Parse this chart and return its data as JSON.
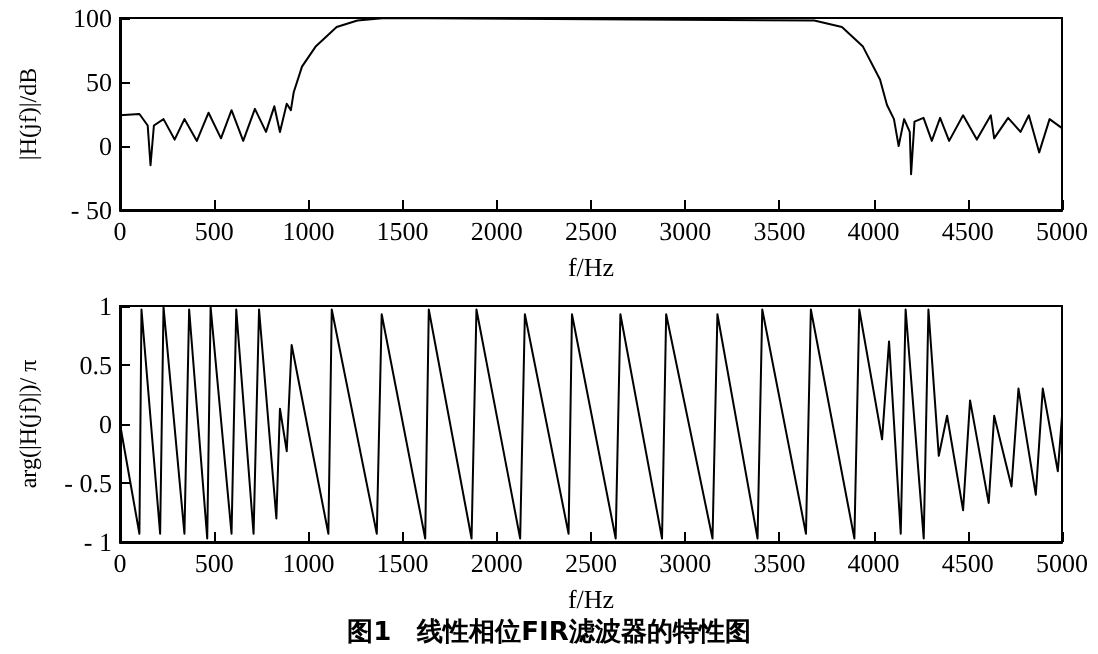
{
  "chart_data": [
    {
      "type": "line",
      "xlabel": "f/Hz",
      "ylabel": "|H(jf)|/dB",
      "color": "#000000",
      "grid": false,
      "xlim": [
        0,
        5000
      ],
      "ylim": [
        -50,
        100
      ],
      "xticks": [
        0,
        500,
        1000,
        1500,
        2000,
        2500,
        3000,
        3500,
        4000,
        4500,
        5000
      ],
      "yticks": [
        -50,
        0,
        50,
        100
      ],
      "x": [
        0,
        103,
        147,
        162,
        180,
        231,
        290,
        342,
        408,
        470,
        536,
        592,
        654,
        716,
        775,
        819,
        849,
        885,
        907,
        922,
        966,
        1040,
        1150,
        1260,
        1407,
        3685,
        3832,
        3942,
        4034,
        4071,
        4108,
        4133,
        4162,
        4192,
        4199,
        4217,
        4265,
        4309,
        4353,
        4401,
        4475,
        4548,
        4622,
        4640,
        4714,
        4780,
        4824,
        4879,
        4934,
        5000
      ],
      "values": [
        24,
        25,
        16,
        -15,
        16,
        21,
        5,
        21,
        4,
        26,
        6,
        28,
        4,
        29,
        11,
        31,
        11,
        33,
        28,
        42,
        62,
        78,
        93,
        98,
        100,
        98,
        93,
        78,
        52,
        32,
        21,
        0,
        21,
        11,
        -22,
        19,
        22,
        4,
        22,
        4,
        24,
        5,
        24,
        6,
        22,
        11,
        24,
        -5,
        21,
        14
      ]
    },
    {
      "type": "line",
      "xlabel": "f/Hz",
      "ylabel": "arg(|H(jf)|)/ π",
      "color": "#000000",
      "grid": false,
      "xlim": [
        0,
        5000
      ],
      "ylim": [
        -1,
        1
      ],
      "xticks": [
        0,
        500,
        1000,
        1500,
        2000,
        2500,
        3000,
        3500,
        4000,
        4500,
        5000
      ],
      "yticks": [
        -1,
        -0.5,
        0,
        0.5,
        1
      ],
      "annotations": [
        "图1　线性相位FIR滤波器的特性图"
      ],
      "x": [
        0,
        103,
        114,
        213,
        231,
        342,
        367,
        463,
        481,
        592,
        617,
        709,
        738,
        830,
        849,
        885,
        911,
        1106,
        1124,
        1363,
        1389,
        1620,
        1639,
        1866,
        1892,
        2124,
        2149,
        2381,
        2399,
        2631,
        2656,
        2877,
        2899,
        3145,
        3171,
        3384,
        3409,
        3641,
        3667,
        3898,
        3924,
        4045,
        4082,
        4144,
        4170,
        4266,
        4291,
        4346,
        4390,
        4475,
        4512,
        4611,
        4640,
        4732,
        4769,
        4861,
        4898,
        4978,
        5000
      ],
      "values": [
        0,
        -0.93,
        0.97,
        -0.93,
        0.99,
        -0.93,
        0.97,
        -0.97,
        0.99,
        -0.93,
        0.97,
        -0.93,
        0.97,
        -0.8,
        0.13,
        -0.23,
        0.67,
        -0.93,
        0.97,
        -0.93,
        0.93,
        -0.97,
        0.97,
        -0.97,
        0.97,
        -0.97,
        0.93,
        -0.93,
        0.93,
        -0.97,
        0.93,
        -0.97,
        0.93,
        -0.97,
        0.93,
        -0.97,
        0.97,
        -0.93,
        0.97,
        -0.97,
        0.97,
        -0.13,
        0.7,
        -0.93,
        0.97,
        -0.97,
        0.97,
        -0.27,
        0.07,
        -0.73,
        0.2,
        -0.67,
        0.07,
        -0.53,
        0.3,
        -0.6,
        0.3,
        -0.4,
        0.07
      ]
    }
  ]
}
